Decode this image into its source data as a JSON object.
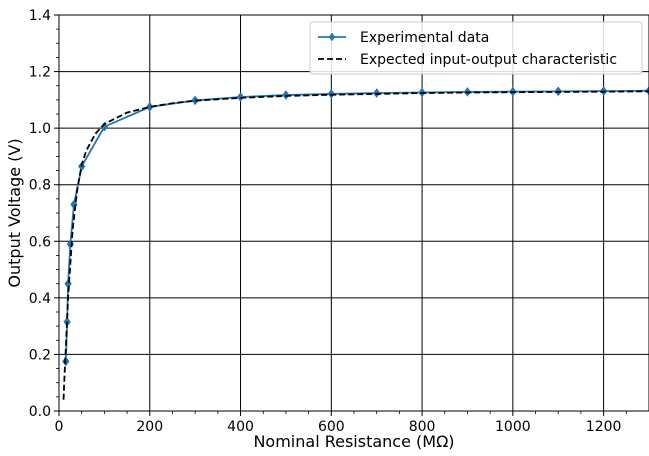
{
  "chart_data": {
    "type": "line",
    "xlabel": "Nominal Resistance (MΩ)",
    "ylabel": "Output Voltage (V)",
    "xlim": [
      0,
      1300
    ],
    "ylim": [
      0,
      1.4
    ],
    "x_ticks": [
      0,
      200,
      400,
      600,
      800,
      1000,
      1200
    ],
    "y_ticks": [
      0.0,
      0.2,
      0.4,
      0.6,
      0.8,
      1.0,
      1.2,
      1.4
    ],
    "x_tick_labels": [
      "0",
      "200",
      "400",
      "600",
      "800",
      "1000",
      "1200"
    ],
    "y_tick_labels": [
      "0.0",
      "0.2",
      "0.4",
      "0.6",
      "0.8",
      "1.0",
      "1.2",
      "1.4"
    ],
    "grid": true,
    "legend_position": "top-right",
    "series": [
      {
        "name": "Experimental data",
        "style": "solid",
        "marker": "diamond",
        "color": "#1f77b4",
        "x": [
          15,
          18,
          20,
          25,
          33,
          50,
          100,
          200,
          300,
          400,
          500,
          600,
          700,
          800,
          900,
          1000,
          1100,
          1200,
          1300
        ],
        "y": [
          0.175,
          0.315,
          0.45,
          0.59,
          0.73,
          0.865,
          1.005,
          1.075,
          1.098,
          1.11,
          1.117,
          1.121,
          1.124,
          1.126,
          1.128,
          1.129,
          1.13,
          1.131,
          1.132
        ]
      },
      {
        "name": "Expected input-output characteristic",
        "style": "dashed",
        "color": "#000000",
        "x": [
          10,
          12,
          15,
          18,
          20,
          25,
          30,
          40,
          50,
          60,
          80,
          100,
          150,
          200,
          250,
          300,
          400,
          500,
          600,
          700,
          800,
          900,
          1000,
          1100,
          1200,
          1300
        ],
        "y": [
          0.04,
          0.12,
          0.22,
          0.33,
          0.4,
          0.52,
          0.64,
          0.78,
          0.87,
          0.92,
          0.98,
          1.015,
          1.055,
          1.075,
          1.088,
          1.097,
          1.107,
          1.114,
          1.118,
          1.121,
          1.124,
          1.126,
          1.127,
          1.128,
          1.129,
          1.13
        ]
      }
    ]
  }
}
